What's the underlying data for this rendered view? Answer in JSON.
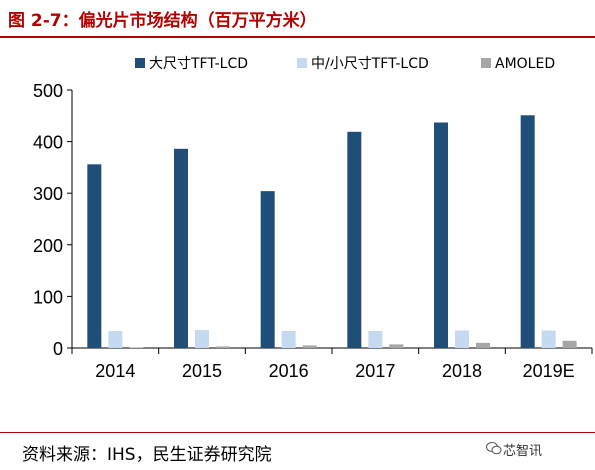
{
  "title": "图 2-7：偏光片市场结构（百万平方米）",
  "source": "资料来源：IHS，民生证券研究院",
  "watermark": "芯智讯",
  "chart_data": {
    "type": "bar",
    "categories": [
      "2014",
      "2015",
      "2016",
      "2017",
      "2018",
      "2019E"
    ],
    "series": [
      {
        "name": "大尺寸TFT-LCD",
        "color": "#1f4e79",
        "values": [
          356,
          386,
          304,
          419,
          437,
          451
        ]
      },
      {
        "name": "中/小尺寸TFT-LCD",
        "color": "#c5d9f1",
        "values": [
          33,
          35,
          33,
          33,
          34,
          34
        ]
      },
      {
        "name": "AMOLED",
        "color": "#a6a6a6",
        "values": [
          1,
          3,
          5,
          7,
          10,
          14
        ]
      }
    ],
    "yticks": [
      "0",
      "100",
      "200",
      "300",
      "400",
      "500"
    ],
    "ylim": [
      0,
      500
    ],
    "legend_position": "top",
    "grid": false
  }
}
